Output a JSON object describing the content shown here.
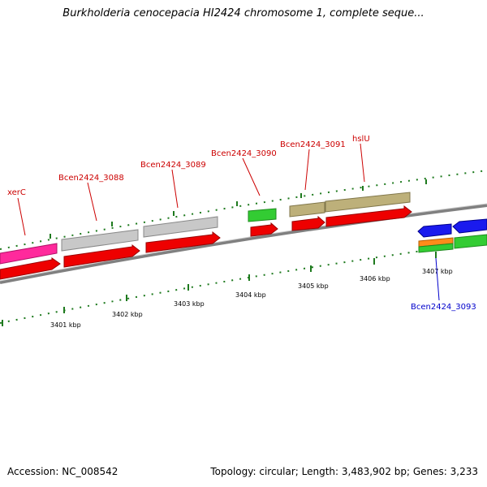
{
  "title": "Burkholderia cenocepacia HI2424 chromosome 1, complete seque...",
  "footer": {
    "accession": "Accession: NC_008542",
    "topology": "Topology: circular; Length: 3,483,902 bp; Genes: 3,233"
  },
  "colors": {
    "backbone": "#808080",
    "tick_green": "#1e7a1e",
    "label_red": "#cc0000",
    "label_blue": "#0000cc",
    "cds_red": "#ee0000",
    "pink": "#ff2a9c",
    "gray": "#c0c0c0",
    "green": "#33cc33",
    "khaki": "#bdb07a",
    "blue": "#1a1aee",
    "orange": "#ff8c1a"
  },
  "kbp_labels": [
    "3401 kbp",
    "3402 kbp",
    "3403 kbp",
    "3404 kbp",
    "3405 kbp",
    "3406 kbp",
    "3407 kbp"
  ],
  "gene_labels": [
    {
      "text": "xerC",
      "color": "red"
    },
    {
      "text": "Bcen2424_3088",
      "color": "red"
    },
    {
      "text": "Bcen2424_3089",
      "color": "red"
    },
    {
      "text": "Bcen2424_3090",
      "color": "red"
    },
    {
      "text": "Bcen2424_3091",
      "color": "red"
    },
    {
      "text": "hslU",
      "color": "red"
    },
    {
      "text": "Bcen2424_3093",
      "color": "blue"
    }
  ]
}
